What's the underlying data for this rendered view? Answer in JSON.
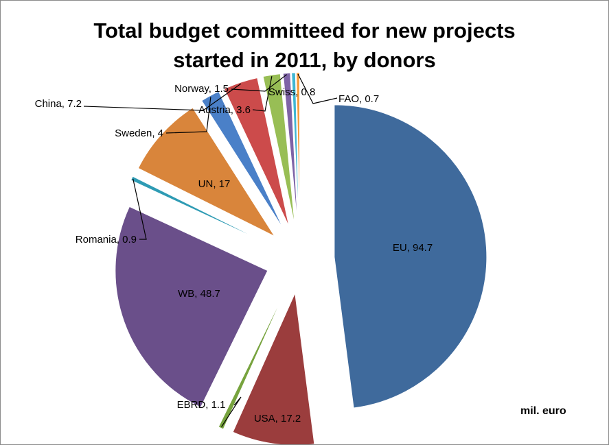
{
  "chart_data": {
    "type": "pie",
    "title_lines": [
      "Total budget committeed for new projects",
      "started in 2011, by donors"
    ],
    "unit_label": "mil. euro",
    "slices": [
      {
        "name": "EU",
        "value": 94.7,
        "label": "EU, 94.7",
        "color": "#3f6a9c"
      },
      {
        "name": "USA",
        "value": 17.2,
        "label": "USA, 17.2",
        "color": "#9b3d3d"
      },
      {
        "name": "EBRD",
        "value": 1.1,
        "label": "EBRD, 1.1",
        "color": "#77a33e"
      },
      {
        "name": "WB",
        "value": 48.7,
        "label": "WB, 48.7",
        "color": "#6a4f8a"
      },
      {
        "name": "Romania",
        "value": 0.9,
        "label": "Romania, 0.9",
        "color": "#2e9bb4"
      },
      {
        "name": "UN",
        "value": 17,
        "label": "UN, 17",
        "color": "#d9853b"
      },
      {
        "name": "Sweden",
        "value": 4,
        "label": "Sweden, 4",
        "color": "#4a80c8"
      },
      {
        "name": "China",
        "value": 7.2,
        "label": "China, 7.2",
        "color": "#cc4b4b"
      },
      {
        "name": "Austria",
        "value": 3.6,
        "label": "Austria, 3.6",
        "color": "#98be55"
      },
      {
        "name": "Norway",
        "value": 1.5,
        "label": "Norway, 1.5",
        "color": "#7e63a6"
      },
      {
        "name": "Swiss",
        "value": 0.8,
        "label": "Swiss, 0.8",
        "color": "#3fb6d2"
      },
      {
        "name": "FAO",
        "value": 0.7,
        "label": "FAO, 0.7",
        "color": "#f59b3d"
      }
    ]
  }
}
